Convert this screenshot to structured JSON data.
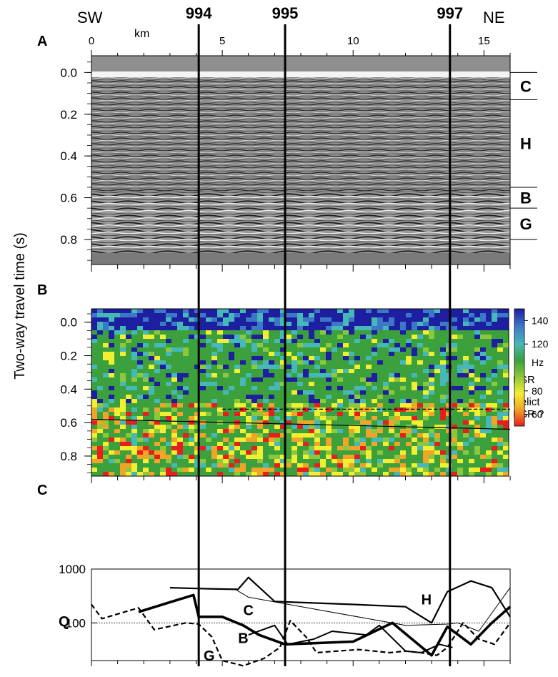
{
  "header": {
    "sw": "SW",
    "ne": "NE",
    "sites": [
      {
        "label": "994",
        "km": 4.1
      },
      {
        "label": "995",
        "km": 7.4
      },
      {
        "label": "997",
        "km": 13.7
      }
    ]
  },
  "x_axis": {
    "unit": "km",
    "range": [
      0,
      16
    ],
    "ticks": [
      {
        "label": "0",
        "value": 0
      },
      {
        "label": "5",
        "value": 5
      },
      {
        "label": "10",
        "value": 10
      },
      {
        "label": "15",
        "value": 15
      }
    ]
  },
  "y_axis_label": "Two-way travel time (s)",
  "panel_a": {
    "letter": "A",
    "time_range": [
      -0.08,
      0.92
    ],
    "ticks": [
      "0.0",
      "0.2",
      "0.4",
      "0.6",
      "0.8"
    ],
    "tick_values": [
      0.0,
      0.2,
      0.4,
      0.6,
      0.8
    ],
    "units": [
      {
        "label": "C",
        "top": 0.0,
        "bottom": 0.13
      },
      {
        "label": "H",
        "top": 0.13,
        "bottom": 0.55
      },
      {
        "label": "B",
        "top": 0.55,
        "bottom": 0.65
      },
      {
        "label": "G",
        "top": 0.65,
        "bottom": 0.8
      }
    ]
  },
  "panel_b": {
    "letter": "B",
    "time_range": [
      -0.08,
      0.92
    ],
    "ticks": [
      "0.0",
      "0.2",
      "0.4",
      "0.6",
      "0.8"
    ],
    "tick_values": [
      0.0,
      0.2,
      0.4,
      0.6,
      0.8
    ],
    "colorbar": {
      "unit": "Hz",
      "range": [
        50,
        150
      ],
      "ticks": [
        {
          "label": "140",
          "value": 140
        },
        {
          "label": "120",
          "value": 120
        },
        {
          "label": "80",
          "value": 80
        },
        {
          "label": "60",
          "value": 60
        }
      ],
      "colors": [
        "#e81e1e",
        "#f0a428",
        "#f2ee30",
        "#8cc83c",
        "#3ca03c",
        "#46b8b8",
        "#3c78c8",
        "#1e1ea0"
      ]
    },
    "bsr_label": "BSR",
    "relict_label_1": "Relict",
    "relict_label_2": "BSR ?",
    "bsr_line": {
      "km": [
        5,
        16
      ],
      "time": [
        0.52,
        0.52
      ]
    },
    "relict_line": {
      "km": [
        0,
        16
      ],
      "time": [
        0.58,
        0.64
      ]
    }
  },
  "panel_c": {
    "letter": "C",
    "q_label": "Q",
    "yscale": "log",
    "ylim": [
      20,
      1000
    ],
    "ticks": [
      {
        "label": "1000",
        "value": 1000
      },
      {
        "label": "100",
        "value": 100
      }
    ],
    "series": [
      {
        "name": "H",
        "style": "solid-medium",
        "x": [
          3.0,
          4.5,
          5.6,
          6.0,
          7.0,
          10.0,
          12.0,
          13.0,
          13.6,
          14.5,
          15.3,
          16.0
        ],
        "y": [
          450,
          430,
          420,
          700,
          250,
          220,
          200,
          100,
          380,
          600,
          450,
          130
        ]
      },
      {
        "name": "",
        "style": "solid-thin",
        "x": [
          3.0,
          5.5,
          6.0,
          12.0,
          13.6,
          14.0,
          14.8,
          16.0
        ],
        "y": [
          450,
          420,
          300,
          90,
          95,
          100,
          70,
          450
        ]
      },
      {
        "name": "C",
        "style": "solid-thick",
        "x": [
          1.8,
          3.9,
          4.1,
          5.0,
          5.8,
          6.4,
          7.4,
          10.0,
          11.5,
          13.0,
          13.6,
          14.5,
          15.3,
          16.0
        ],
        "y": [
          160,
          330,
          130,
          130,
          90,
          60,
          40,
          45,
          100,
          25,
          85,
          40,
          100,
          200
        ]
      },
      {
        "name": "",
        "style": "solid-thin2",
        "x": [
          6.0,
          7.0,
          7.5,
          8.5,
          9.2,
          10.5,
          11.0,
          12.0,
          12.6,
          13.3,
          13.8
        ],
        "y": [
          60,
          90,
          40,
          50,
          70,
          60,
          90,
          30,
          28,
          40,
          35
        ]
      },
      {
        "name": "G",
        "style": "dashed",
        "x": [
          0.0,
          0.4,
          1.8,
          2.4,
          3.6,
          4.1,
          4.6,
          5.0,
          5.8,
          6.6,
          7.2,
          7.6,
          8.2,
          8.6,
          9.4,
          10.2,
          10.8,
          11.4,
          12.0,
          12.6,
          13.2,
          13.6,
          14.2,
          14.8,
          15.4,
          16.0
        ],
        "y": [
          220,
          120,
          190,
          75,
          100,
          95,
          55,
          20,
          16,
          22,
          35,
          110,
          55,
          28,
          30,
          32,
          30,
          28,
          30,
          28,
          25,
          35,
          100,
          50,
          40,
          100
        ]
      }
    ],
    "series_labels": [
      {
        "label": "H",
        "km": 12.8,
        "q": 220
      },
      {
        "label": "C",
        "km": 6.0,
        "q": 140
      },
      {
        "label": "B",
        "km": 5.8,
        "q": 42
      },
      {
        "label": "G",
        "km": 4.5,
        "q": 20
      }
    ],
    "reference_line": {
      "q": 100,
      "style": "dotted"
    }
  }
}
